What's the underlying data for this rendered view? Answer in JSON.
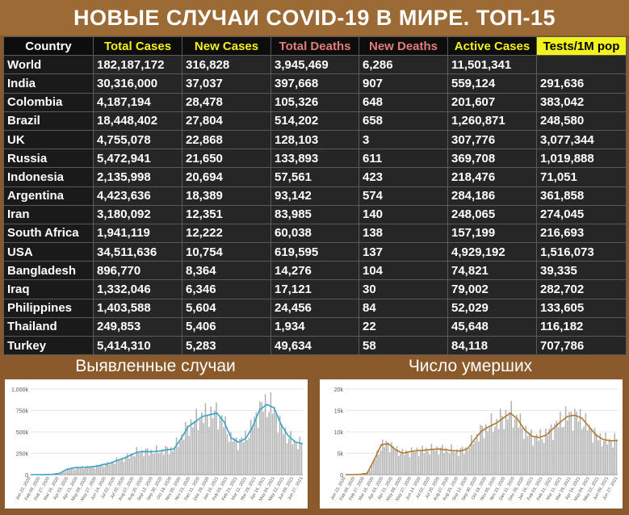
{
  "title": "НОВЫЕ СЛУЧАИ COVID-19 В МИРЕ. ТОП-15",
  "table": {
    "headers": [
      "Country",
      "Total Cases",
      "New Cases",
      "Total Deaths",
      "New Deaths",
      "Active Cases",
      "Tests/1M pop"
    ],
    "rows": [
      [
        "World",
        "182,187,172",
        "316,828",
        "3,945,469",
        "6,286",
        "11,501,341",
        ""
      ],
      [
        "India",
        "30,316,000",
        "37,037",
        "397,668",
        "907",
        "559,124",
        "291,636"
      ],
      [
        "Colombia",
        "4,187,194",
        "28,478",
        "105,326",
        "648",
        "201,607",
        "383,042"
      ],
      [
        "Brazil",
        "18,448,402",
        "27,804",
        "514,202",
        "658",
        "1,260,871",
        "248,580"
      ],
      [
        "UK",
        "4,755,078",
        "22,868",
        "128,103",
        "3",
        "307,776",
        "3,077,344"
      ],
      [
        "Russia",
        "5,472,941",
        "21,650",
        "133,893",
        "611",
        "369,708",
        "1,019,888"
      ],
      [
        "Indonesia",
        "2,135,998",
        "20,694",
        "57,561",
        "423",
        "218,476",
        "71,051"
      ],
      [
        "Argentina",
        "4,423,636",
        "18,389",
        "93,142",
        "574",
        "284,186",
        "361,858"
      ],
      [
        "Iran",
        "3,180,092",
        "12,351",
        "83,985",
        "140",
        "248,065",
        "274,045"
      ],
      [
        "South Africa",
        "1,941,119",
        "12,222",
        "60,038",
        "138",
        "157,199",
        "216,693"
      ],
      [
        "USA",
        "34,511,636",
        "10,754",
        "619,595",
        "137",
        "4,929,192",
        "1,516,073"
      ],
      [
        "Bangladesh",
        "896,770",
        "8,364",
        "14,276",
        "104",
        "74,821",
        "39,335"
      ],
      [
        "Iraq",
        "1,332,046",
        "6,346",
        "17,121",
        "30",
        "79,002",
        "282,702"
      ],
      [
        "Philippines",
        "1,403,588",
        "5,604",
        "24,456",
        "84",
        "52,029",
        "133,605"
      ],
      [
        "Thailand",
        "249,853",
        "5,406",
        "1,934",
        "22",
        "45,648",
        "116,182"
      ],
      [
        "Turkey",
        "5,414,310",
        "5,283",
        "49,634",
        "58",
        "84,118",
        "707,786"
      ]
    ]
  },
  "panels": {
    "cases_title": "Выявленные случаи",
    "deaths_title": "Число умерших"
  },
  "chart_data": [
    {
      "type": "bar",
      "title": "Выявленные случаи",
      "ylim": [
        0,
        1000000
      ],
      "y_ticks": [
        "0",
        "250k",
        "500k",
        "750k",
        "1,000k"
      ],
      "y_tick_values": [
        0,
        250000,
        500000,
        750000,
        1000000
      ],
      "x_ticks": [
        "Jan 22, 2020",
        "Feb 09, 2020",
        "Feb 27, 2020",
        "Mar 16, 2020",
        "Apr 03, 2020",
        "Apr 21, 2020",
        "May 09, 2020",
        "May 27, 2020",
        "Jun 14, 2020",
        "Jul 02, 2020",
        "Jul 20, 2020",
        "Aug 07, 2020",
        "Aug 25, 2020",
        "Sep 12, 2020",
        "Sep 30, 2020",
        "Oct 18, 2020",
        "Nov 05, 2020",
        "Nov 23, 2020",
        "Dec 11, 2020",
        "Dec 29, 2020",
        "Jan 16, 2021",
        "Feb 03, 2021",
        "Feb 21, 2021",
        "Mar 11, 2021",
        "Mar 29, 2021",
        "Apr 16, 2021",
        "May 04, 2021",
        "May 22, 2021",
        "Jun 09, 2021",
        "Jun 27, 2021"
      ],
      "bar_color": "#b3b3b3",
      "line_color": "#3aa3c9",
      "line_values": [
        0,
        0,
        1000,
        3000,
        15000,
        60000,
        80000,
        85000,
        88000,
        95000,
        115000,
        130000,
        165000,
        190000,
        230000,
        265000,
        270000,
        268000,
        275000,
        290000,
        300000,
        420000,
        560000,
        620000,
        680000,
        700000,
        720000,
        620000,
        430000,
        380000,
        420000,
        560000,
        760000,
        820000,
        780000,
        580000,
        450000,
        380000,
        360000
      ]
    },
    {
      "type": "bar",
      "title": "Число умерших",
      "ylim": [
        0,
        20000
      ],
      "y_ticks": [
        "0",
        "5k",
        "10k",
        "15k",
        "20k"
      ],
      "y_tick_values": [
        0,
        5000,
        10000,
        15000,
        20000
      ],
      "x_ticks": [
        "Jan 22, 2020",
        "Feb 09, 2020",
        "Feb 27, 2020",
        "Mar 16, 2020",
        "Apr 03, 2020",
        "Apr 21, 2020",
        "May 09, 2020",
        "May 27, 2020",
        "Jun 14, 2020",
        "Jul 02, 2020",
        "Jul 20, 2020",
        "Aug 07, 2020",
        "Aug 25, 2020",
        "Sep 12, 2020",
        "Sep 30, 2020",
        "Oct 18, 2020",
        "Nov 05, 2020",
        "Nov 23, 2020",
        "Dec 11, 2020",
        "Dec 29, 2020",
        "Jan 16, 2021",
        "Feb 03, 2021",
        "Feb 21, 2021",
        "Mar 11, 2021",
        "Mar 29, 2021",
        "Apr 16, 2021",
        "May 04, 2021",
        "May 22, 2021",
        "Jun 09, 2021",
        "Jun 27, 2021"
      ],
      "bar_color": "#b3b3b3",
      "line_color": "#b07a2a",
      "line_values": [
        0,
        0,
        50,
        300,
        3500,
        7000,
        7200,
        5800,
        5000,
        5400,
        5600,
        5700,
        5900,
        6000,
        5800,
        5600,
        5500,
        6000,
        8200,
        10200,
        11200,
        12000,
        13200,
        14400,
        13000,
        10500,
        9000,
        8700,
        9200,
        10800,
        12300,
        13600,
        13900,
        13200,
        11200,
        9200,
        8200,
        7900,
        8000
      ]
    }
  ]
}
